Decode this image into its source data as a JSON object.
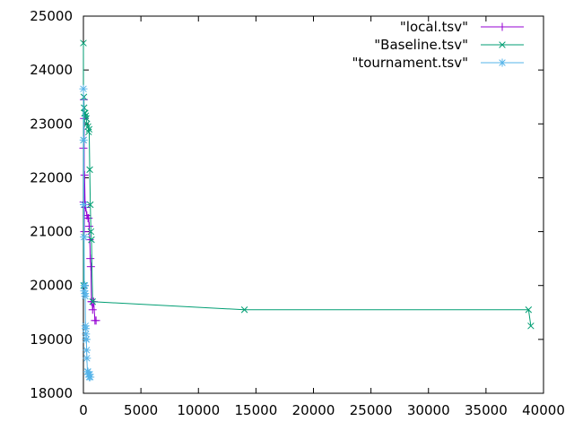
{
  "chart_data": {
    "type": "line",
    "title": "",
    "xlabel": "",
    "ylabel": "",
    "xlim": [
      0,
      40000
    ],
    "ylim": [
      18000,
      25000
    ],
    "x_ticks": [
      0,
      5000,
      10000,
      15000,
      20000,
      25000,
      30000,
      35000,
      40000
    ],
    "y_ticks": [
      18000,
      19000,
      20000,
      21000,
      22000,
      23000,
      24000,
      25000
    ],
    "grid": false,
    "legend_position": "top-right",
    "series": [
      {
        "name": "\"local.tsv\"",
        "color": "#9400d3",
        "marker": "plus",
        "x": [
          0,
          20,
          40,
          60,
          80,
          100,
          150,
          200,
          300,
          400,
          450,
          500,
          550,
          600,
          650,
          700,
          750,
          800,
          900,
          1000,
          1100
        ],
        "y": [
          22550,
          21550,
          23450,
          23100,
          21000,
          22050,
          21500,
          21450,
          21300,
          21250,
          21250,
          21100,
          20850,
          20500,
          20350,
          19700,
          19700,
          19550,
          19700,
          19350,
          19350
        ]
      },
      {
        "name": "\"Baseline.tsv\"",
        "color": "#009e73",
        "marker": "x",
        "x": [
          0,
          10,
          20,
          40,
          60,
          100,
          150,
          200,
          250,
          300,
          400,
          450,
          500,
          550,
          600,
          650,
          700,
          800,
          14000,
          38700,
          38900
        ],
        "y": [
          24500,
          22700,
          20000,
          23500,
          23300,
          23200,
          23200,
          23150,
          23100,
          23000,
          22950,
          22850,
          22900,
          22150,
          21500,
          21000,
          20850,
          19700,
          19550,
          19550,
          19250
        ]
      },
      {
        "name": "\"tournament.tsv\"",
        "color": "#56b4e9",
        "marker": "star",
        "x": [
          0,
          20,
          40,
          60,
          80,
          100,
          120,
          140,
          160,
          180,
          200,
          220,
          240,
          260,
          280,
          300,
          350,
          400,
          450,
          500,
          550,
          600
        ],
        "y": [
          23650,
          22700,
          21500,
          20900,
          19900,
          20000,
          20000,
          19850,
          19800,
          19250,
          19200,
          19100,
          19000,
          19000,
          18800,
          18650,
          18400,
          18400,
          18350,
          18300,
          18350,
          18300
        ]
      }
    ]
  }
}
